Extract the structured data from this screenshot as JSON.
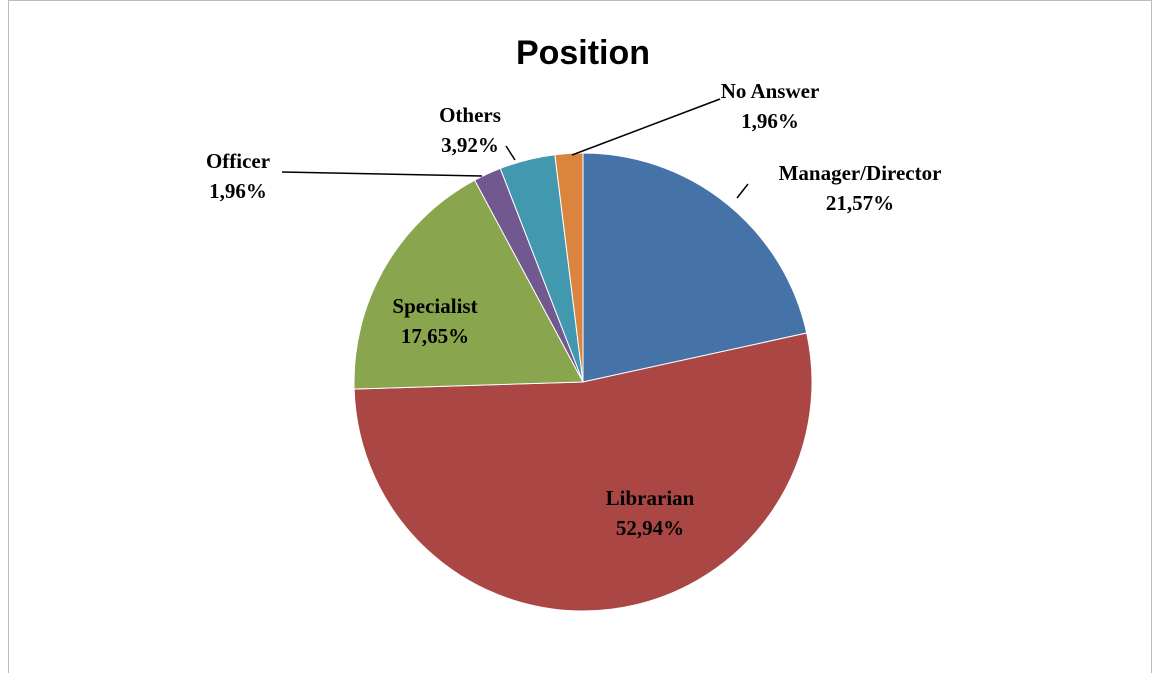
{
  "chart_data": {
    "type": "pie",
    "title": "Position",
    "categories": [
      "Manager/Director",
      "Librarian",
      "Specialist",
      "Officer",
      "Others",
      "No Answer"
    ],
    "values": [
      21.57,
      52.94,
      17.65,
      1.96,
      3.92,
      1.96
    ],
    "value_labels": [
      "21,57%",
      "52,94%",
      "17,65%",
      "1,96%",
      "3,92%",
      "1,96%"
    ],
    "colors": [
      "#4572a7",
      "#aa4643",
      "#89a54e",
      "#71588f",
      "#4198af",
      "#db843d"
    ]
  }
}
